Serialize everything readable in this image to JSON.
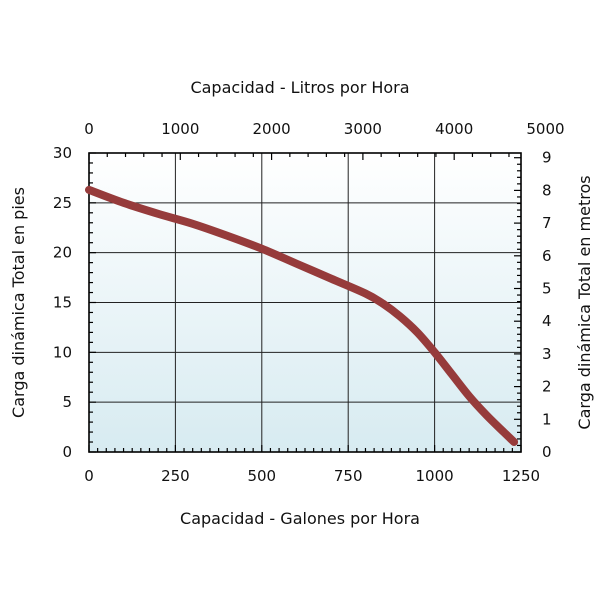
{
  "colors": {
    "curve": "#963b3b",
    "plot_bg_top": "#ffffff",
    "plot_bg_bottom": "#d7ebf1",
    "grid": "#222222"
  },
  "chart_data": {
    "type": "line",
    "title": "",
    "x_bottom": {
      "label": "Capacidad - Galones por Hora",
      "range": [
        0,
        1250
      ],
      "ticks": [
        0,
        250,
        500,
        750,
        1000,
        1250
      ],
      "minor_step": 25
    },
    "x_top": {
      "label": "Capacidad - Litros por Hora",
      "range": [
        0,
        4731.8
      ],
      "ticks": [
        0,
        1000,
        2000,
        3000,
        4000,
        5000
      ],
      "minor_step": 200
    },
    "y_left": {
      "label": "Carga dinámica Total en pies",
      "range": [
        0,
        30
      ],
      "ticks": [
        0,
        5,
        10,
        15,
        20,
        25,
        30
      ],
      "minor_step": 1
    },
    "y_right": {
      "label": "Carga dinámica Total en metros",
      "range": [
        0,
        9.144
      ],
      "ticks": [
        0,
        1,
        2,
        3,
        4,
        5,
        6,
        7,
        8,
        9
      ],
      "minor_step": 0.2
    },
    "grid": true,
    "series": [
      {
        "x": [
          0,
          100,
          200,
          300,
          400,
          500,
          600,
          700,
          800,
          850,
          900,
          950,
          1000,
          1050,
          1100,
          1150,
          1200,
          1230
        ],
        "y": [
          26.3,
          25.0,
          23.9,
          22.9,
          21.7,
          20.4,
          18.9,
          17.4,
          15.9,
          14.9,
          13.6,
          12.0,
          10.0,
          7.8,
          5.6,
          3.7,
          2.0,
          1.0
        ]
      }
    ]
  }
}
